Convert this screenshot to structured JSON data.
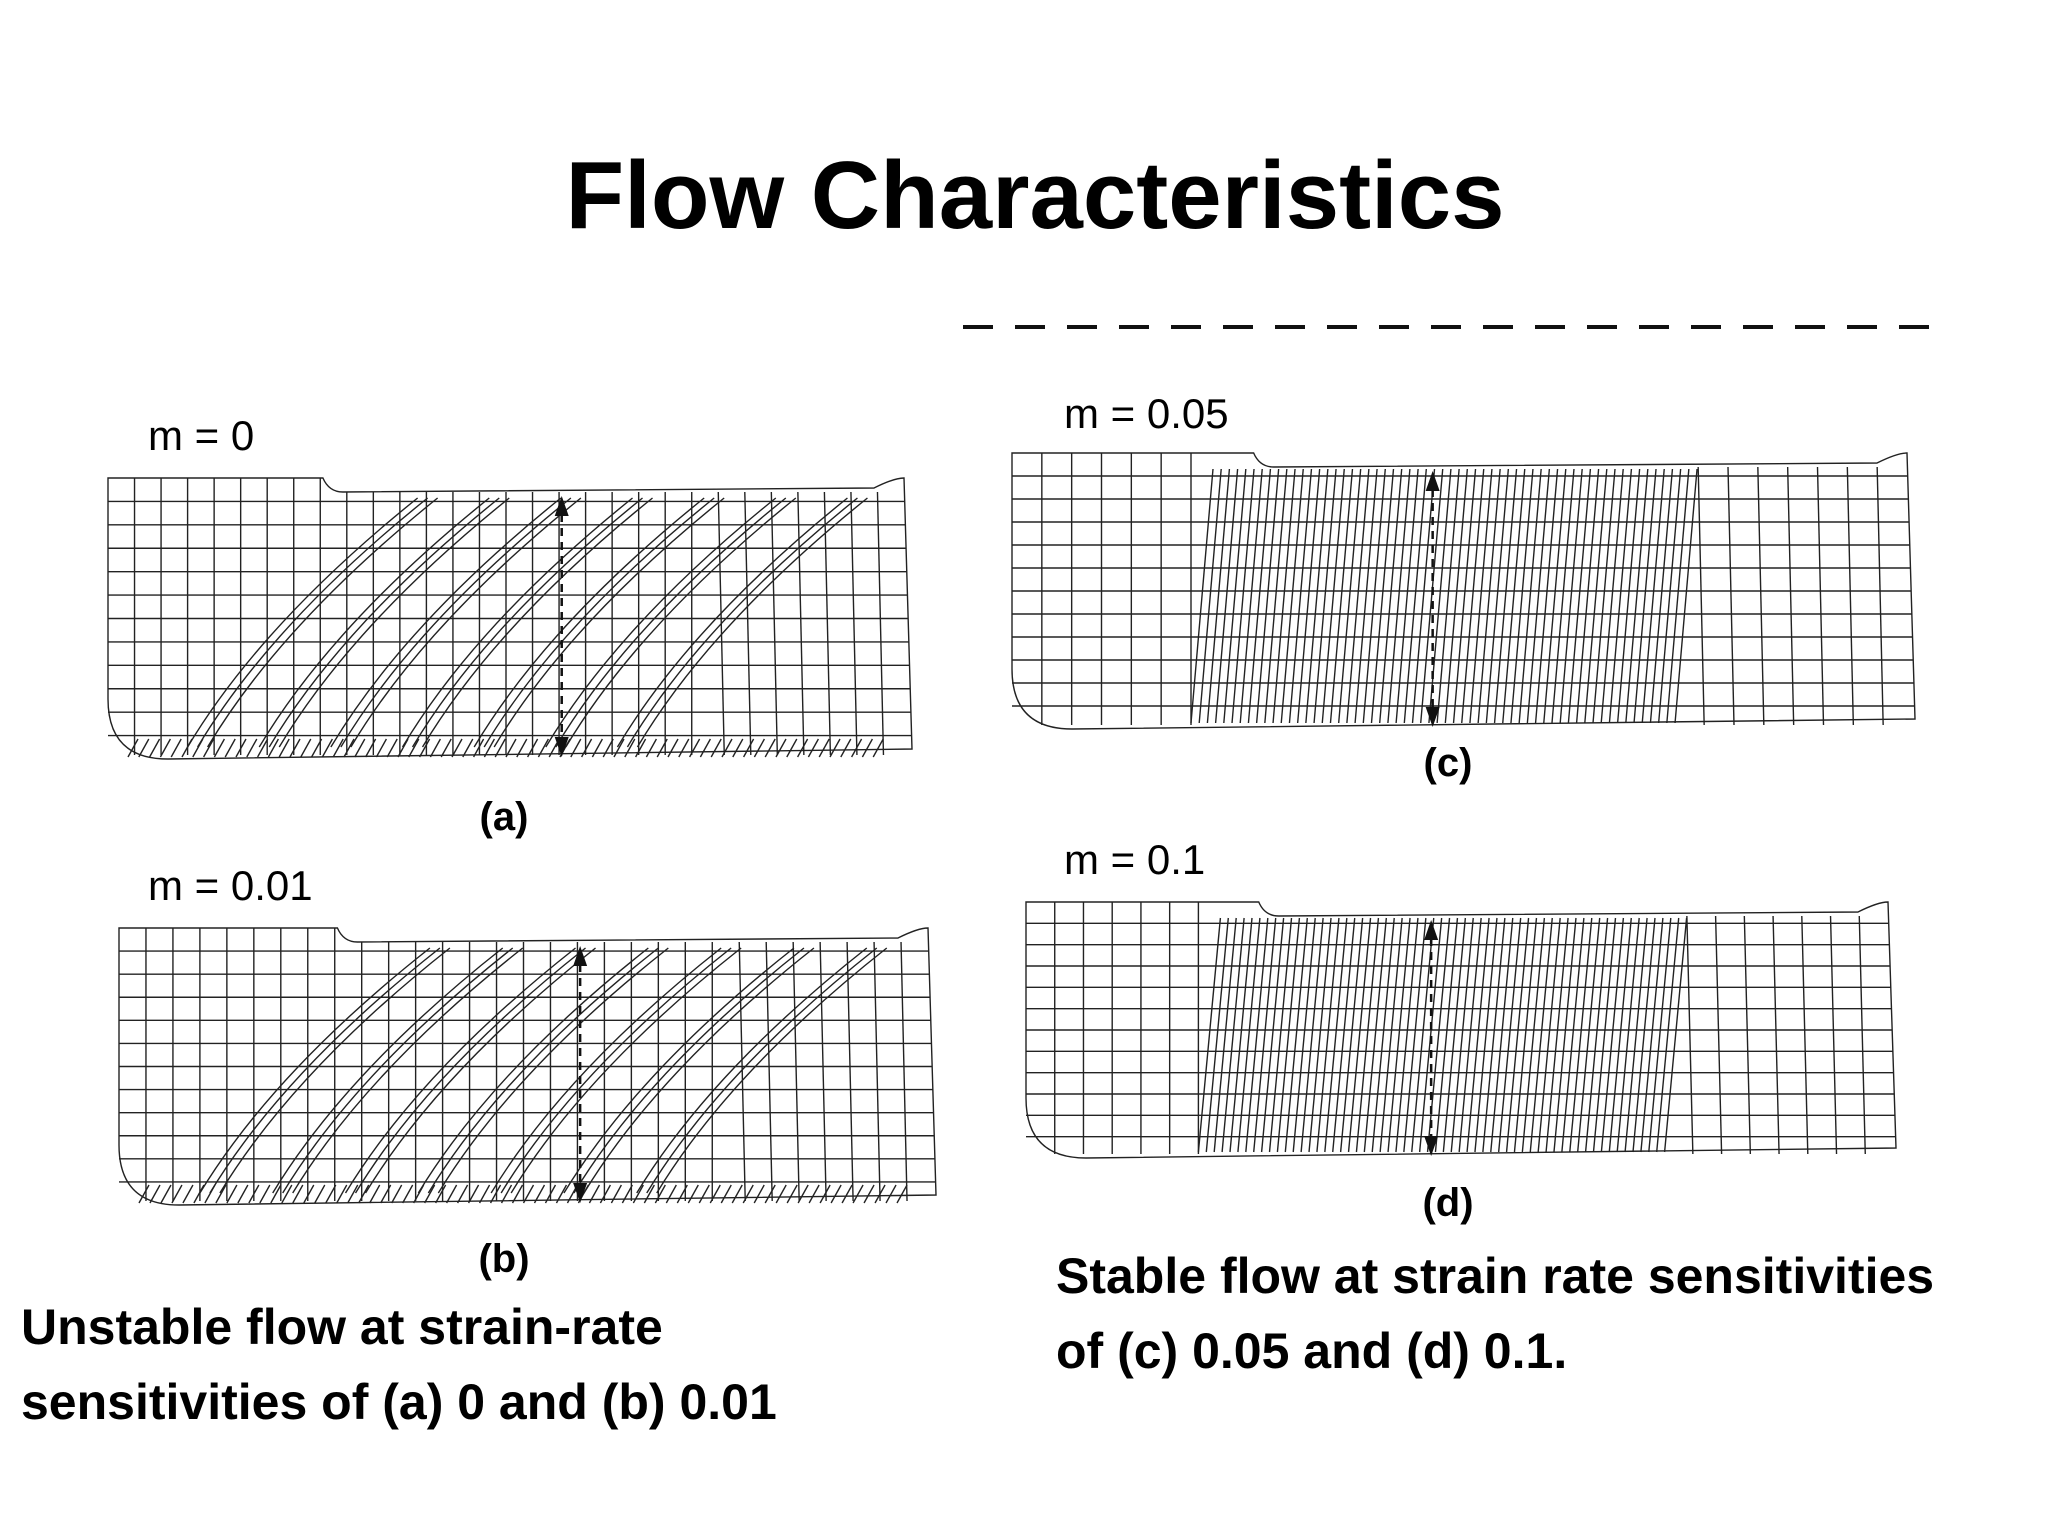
{
  "title": "Flow Characteristics",
  "panels": [
    {
      "label": "m = 0",
      "tag": "(a)"
    },
    {
      "label": "m = 0.01",
      "tag": "(b)"
    },
    {
      "label": "m = 0.05",
      "tag": "(c)"
    },
    {
      "label": "m = 0.1",
      "tag": "(d)"
    }
  ],
  "captions": [
    {
      "lines": [
        "Unstable flow at strain-rate",
        "sensitivities of (a) 0 and (b) 0.01"
      ]
    },
    {
      "lines": [
        "Stable flow at strain rate sensitivities",
        "of (c) 0.05 and (d) 0.1."
      ]
    }
  ]
}
